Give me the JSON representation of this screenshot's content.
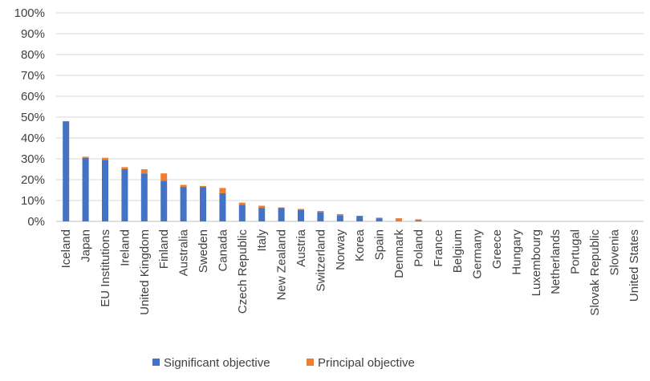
{
  "chart_data": {
    "type": "bar",
    "stacked": true,
    "title": "",
    "xlabel": "",
    "ylabel": "",
    "ylim": [
      0,
      100
    ],
    "yticks": [
      "0%",
      "10%",
      "20%",
      "30%",
      "40%",
      "50%",
      "60%",
      "70%",
      "80%",
      "90%",
      "100%"
    ],
    "grid": true,
    "legend_position": "bottom",
    "categories": [
      "Iceland",
      "Japan",
      "EU Institutions",
      "Ireland",
      "United Kingdom",
      "Finland",
      "Australia",
      "Sweden",
      "Canada",
      "Czech Republic",
      "Italy",
      "New Zealand",
      "Austria",
      "Switzerland",
      "Norway",
      "Korea",
      "Spain",
      "Denmark",
      "Poland",
      "France",
      "Belgium",
      "Germany",
      "Greece",
      "Hungary",
      "Luxembourg",
      "Netherlands",
      "Portugal",
      "Slovak Republic",
      "Slovenia",
      "United States"
    ],
    "series": [
      {
        "name": "Significant objective",
        "color": "#4472C4",
        "values": [
          48,
          30.5,
          29.5,
          25,
          23,
          19.5,
          16.5,
          16.5,
          13.5,
          8,
          6.5,
          6.5,
          5.5,
          4.5,
          3,
          2.5,
          1.5,
          0,
          0.5,
          0,
          0,
          0,
          0,
          0,
          0,
          0,
          0,
          0,
          0,
          0
        ]
      },
      {
        "name": "Principal objective",
        "color": "#ED7D31",
        "values": [
          0,
          0.5,
          1,
          1,
          2,
          3.5,
          1,
          0.5,
          2.5,
          1,
          1,
          0.2,
          0.5,
          0.5,
          0.5,
          0.2,
          0.3,
          1.5,
          0.5,
          0,
          0,
          0,
          0,
          0,
          0,
          0,
          0,
          0,
          0,
          0
        ]
      }
    ]
  }
}
